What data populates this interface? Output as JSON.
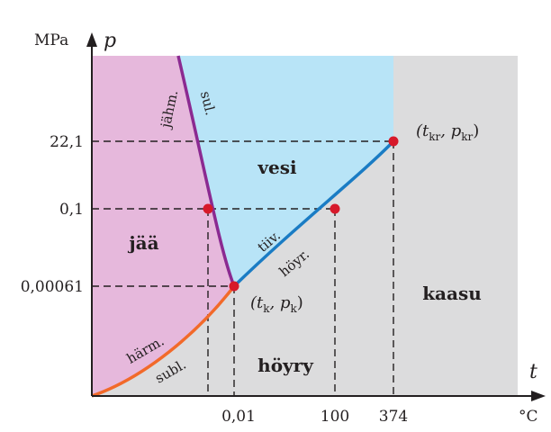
{
  "chart_data": {
    "type": "phase-diagram",
    "title": "",
    "xlabel": "t",
    "xunit": "°C",
    "ylabel": "p",
    "yunit": "MPa",
    "x_ticks": [
      "0,01",
      "100",
      "374"
    ],
    "y_ticks": [
      "22,1",
      "0,1",
      "0,00061"
    ],
    "regions": {
      "ice": "jää",
      "water": "vesi",
      "vapour": "höyry",
      "gas": "kaasu"
    },
    "curves": {
      "fusion": {
        "labels": [
          "jähm.",
          "sul."
        ],
        "color": "#8b2a91"
      },
      "vaporization": {
        "labels": [
          "tiiv.",
          "höyr."
        ],
        "color": "#1a7cc4"
      },
      "sublimation": {
        "labels": [
          "härm.",
          "subl."
        ],
        "color": "#f26a2a"
      }
    },
    "points": [
      {
        "name": "triple",
        "t": 0.01,
        "p": 0.00061,
        "label": "(t",
        "sub1": "k",
        "mid": ", p",
        "sub2": "k",
        "end": ")"
      },
      {
        "name": "normal-melting",
        "t": 0,
        "p": 0.1
      },
      {
        "name": "normal-boiling",
        "t": 100,
        "p": 0.1
      },
      {
        "name": "critical",
        "t": 374,
        "p": 22.1,
        "label": "(t",
        "sub1": "kr",
        "mid": ", p",
        "sub2": "kr",
        "end": ")"
      }
    ],
    "colors": {
      "ice_region": "#e6b8dc",
      "water_region": "#b8e4f7",
      "gas_region": "#dcdcdd",
      "point": "#d7192a",
      "axis": "#231f20"
    }
  }
}
